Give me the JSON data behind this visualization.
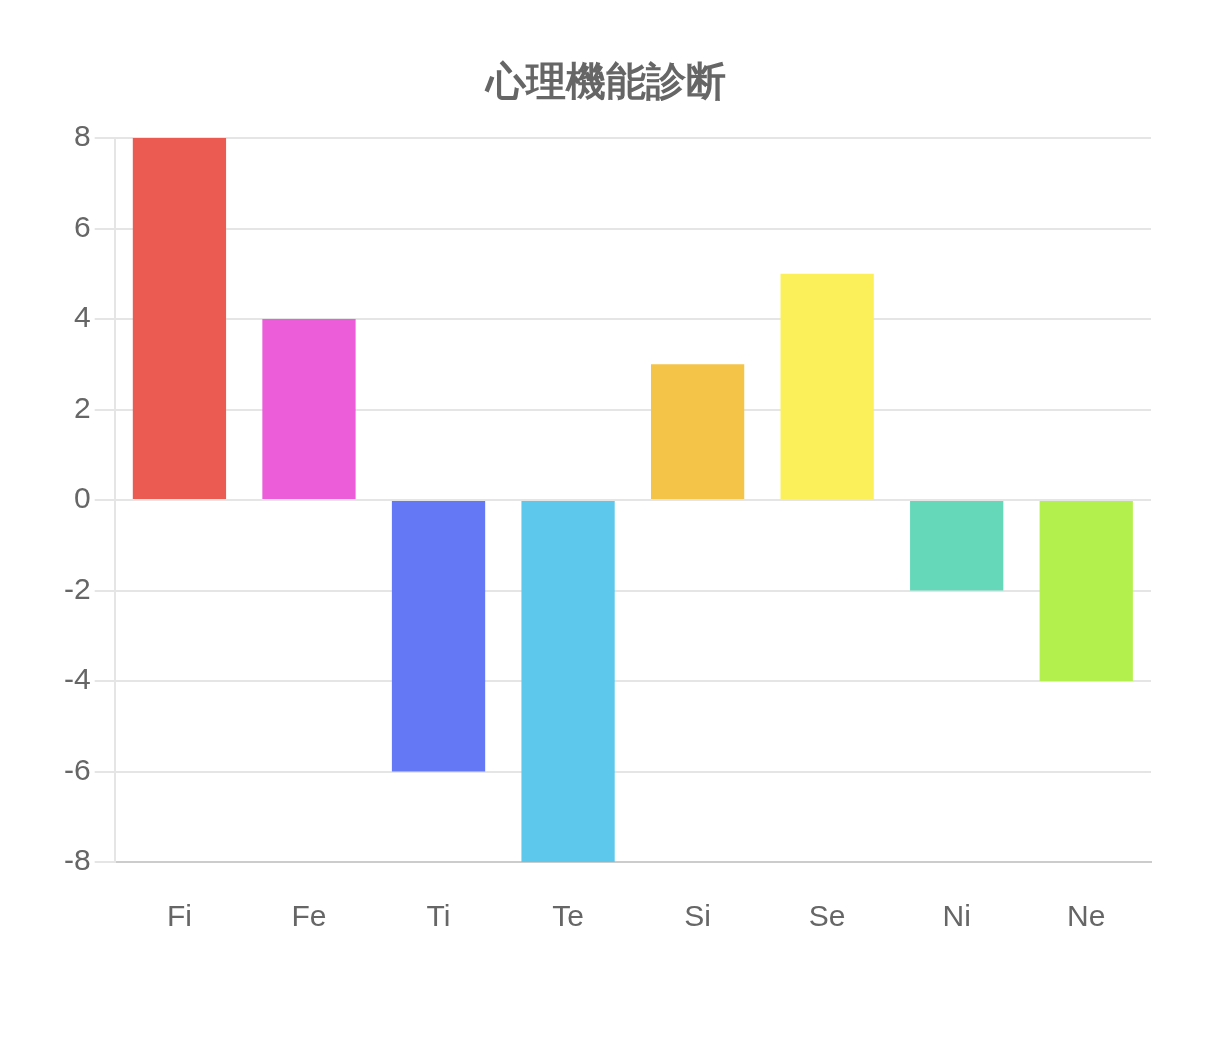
{
  "chart_data": {
    "type": "bar",
    "title": "心理機能診断",
    "categories": [
      "Fi",
      "Fe",
      "Ti",
      "Te",
      "Si",
      "Se",
      "Ni",
      "Ne"
    ],
    "values": [
      8,
      4,
      -6,
      -8,
      3,
      5,
      -2,
      -4
    ],
    "colors": [
      "#eb5b52",
      "#ec5dd9",
      "#6478f6",
      "#5dc8ec",
      "#f4c448",
      "#fbf05a",
      "#65d8b9",
      "#b3f04d"
    ],
    "ylim": [
      -8,
      8
    ],
    "yticks": [
      -8,
      -6,
      -4,
      -2,
      0,
      2,
      4,
      6,
      8
    ],
    "grid": "y",
    "legend": false
  }
}
